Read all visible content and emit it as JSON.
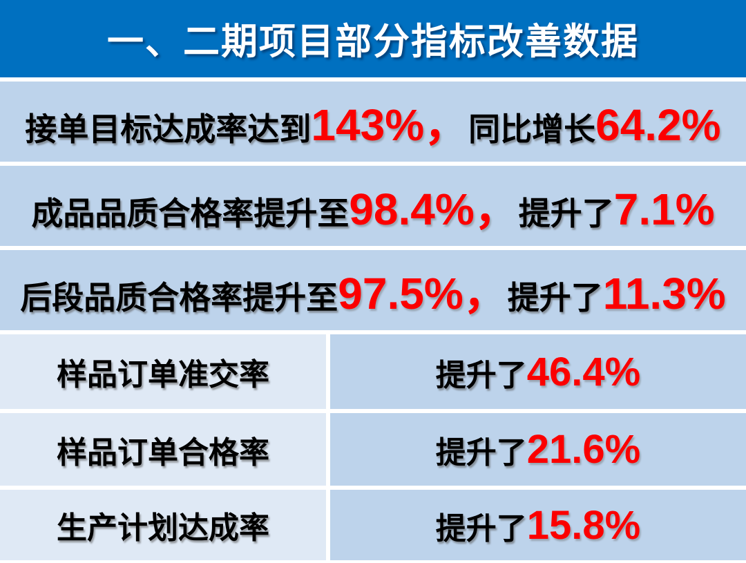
{
  "header": {
    "title": "一、二期项目部分指标改善数据"
  },
  "colors": {
    "header_bg": "#0070C0",
    "header_text": "#FFFFFF",
    "row_bg": "#BDD3EB",
    "label_cell_bg": "#DFE9F5",
    "body_text": "#000000",
    "highlight_number": "#FB0000",
    "separator": "#FFFFFF"
  },
  "full_rows": [
    {
      "segments": [
        "接单目标达成率达到",
        "143%，",
        "同比增长",
        "64.2%"
      ]
    },
    {
      "segments": [
        "成品品质合格率提升至",
        "98.4%，",
        "提升了",
        "7.1%"
      ]
    },
    {
      "segments": [
        "后段品质合格率提升至",
        "97.5%，",
        "提升了",
        "11.3%"
      ]
    }
  ],
  "split_rows": [
    {
      "label": "样品订单准交率",
      "prefix": "提升了",
      "value": "46.4%"
    },
    {
      "label": "样品订单合格率",
      "prefix": "提升了",
      "value": "21.6%"
    },
    {
      "label": "生产计划达成率",
      "prefix": "提升了",
      "value": "15.8%"
    }
  ]
}
